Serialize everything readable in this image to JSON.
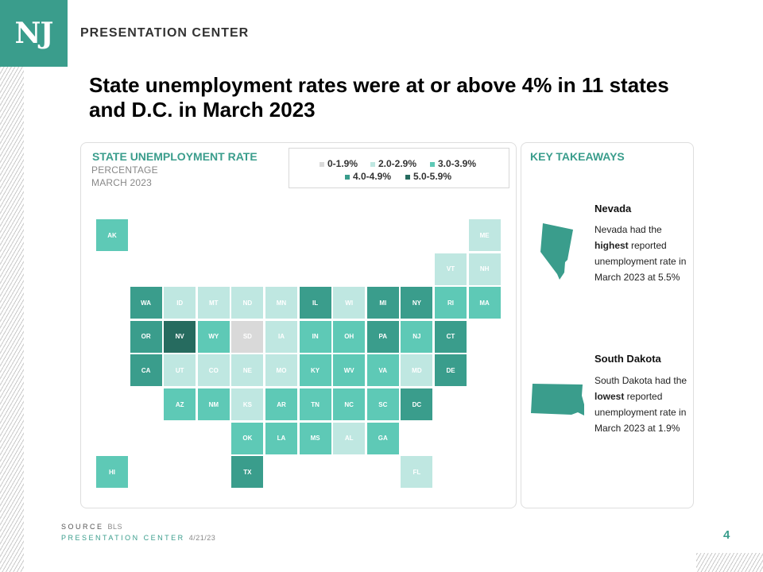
{
  "header": {
    "logo_text": "NJ",
    "brand": "PRESENTATION CENTER",
    "title": "State unemployment rates were at or above 4% in 11 states and D.C. in March 2023"
  },
  "map_panel": {
    "title": "STATE UNEMPLOYMENT RATE",
    "subtitle_1": "PERCENTAGE",
    "subtitle_2": "MARCH 2023"
  },
  "legend": [
    {
      "label": "0-1.9%",
      "color": "#d9d9d9"
    },
    {
      "label": "2.0-2.9%",
      "color": "#bfe7e1"
    },
    {
      "label": "3.0-3.9%",
      "color": "#5ec9b6"
    },
    {
      "label": "4.0-4.9%",
      "color": "#3a9d8c"
    },
    {
      "label": "5.0-5.9%",
      "color": "#266b5f"
    }
  ],
  "chart_data": {
    "type": "heatmap",
    "title": "STATE UNEMPLOYMENT RATE",
    "subtitle": "PERCENTAGE / MARCH 2023",
    "bins": [
      "0-1.9%",
      "2.0-2.9%",
      "3.0-3.9%",
      "4.0-4.9%",
      "5.0-5.9%"
    ],
    "states": [
      {
        "abbr": "AK",
        "bin": 2,
        "row": 0,
        "col": 0
      },
      {
        "abbr": "ME",
        "bin": 1,
        "row": 0,
        "col": 11
      },
      {
        "abbr": "VT",
        "bin": 1,
        "row": 1,
        "col": 10
      },
      {
        "abbr": "NH",
        "bin": 1,
        "row": 1,
        "col": 11
      },
      {
        "abbr": "WA",
        "bin": 3,
        "row": 2,
        "col": 1
      },
      {
        "abbr": "ID",
        "bin": 1,
        "row": 2,
        "col": 2
      },
      {
        "abbr": "MT",
        "bin": 1,
        "row": 2,
        "col": 3
      },
      {
        "abbr": "ND",
        "bin": 1,
        "row": 2,
        "col": 4
      },
      {
        "abbr": "MN",
        "bin": 1,
        "row": 2,
        "col": 5
      },
      {
        "abbr": "IL",
        "bin": 3,
        "row": 2,
        "col": 6
      },
      {
        "abbr": "WI",
        "bin": 1,
        "row": 2,
        "col": 7
      },
      {
        "abbr": "MI",
        "bin": 3,
        "row": 2,
        "col": 8
      },
      {
        "abbr": "NY",
        "bin": 3,
        "row": 2,
        "col": 9
      },
      {
        "abbr": "RI",
        "bin": 2,
        "row": 2,
        "col": 10
      },
      {
        "abbr": "MA",
        "bin": 2,
        "row": 2,
        "col": 11
      },
      {
        "abbr": "OR",
        "bin": 3,
        "row": 3,
        "col": 1
      },
      {
        "abbr": "NV",
        "bin": 4,
        "row": 3,
        "col": 2
      },
      {
        "abbr": "WY",
        "bin": 2,
        "row": 3,
        "col": 3
      },
      {
        "abbr": "SD",
        "bin": 0,
        "row": 3,
        "col": 4
      },
      {
        "abbr": "IA",
        "bin": 1,
        "row": 3,
        "col": 5
      },
      {
        "abbr": "IN",
        "bin": 2,
        "row": 3,
        "col": 6
      },
      {
        "abbr": "OH",
        "bin": 2,
        "row": 3,
        "col": 7
      },
      {
        "abbr": "PA",
        "bin": 3,
        "row": 3,
        "col": 8
      },
      {
        "abbr": "NJ",
        "bin": 2,
        "row": 3,
        "col": 9
      },
      {
        "abbr": "CT",
        "bin": 3,
        "row": 3,
        "col": 10
      },
      {
        "abbr": "CA",
        "bin": 3,
        "row": 4,
        "col": 1
      },
      {
        "abbr": "UT",
        "bin": 1,
        "row": 4,
        "col": 2
      },
      {
        "abbr": "CO",
        "bin": 1,
        "row": 4,
        "col": 3
      },
      {
        "abbr": "NE",
        "bin": 1,
        "row": 4,
        "col": 4
      },
      {
        "abbr": "MO",
        "bin": 1,
        "row": 4,
        "col": 5
      },
      {
        "abbr": "KY",
        "bin": 2,
        "row": 4,
        "col": 6
      },
      {
        "abbr": "WV",
        "bin": 2,
        "row": 4,
        "col": 7
      },
      {
        "abbr": "VA",
        "bin": 2,
        "row": 4,
        "col": 8
      },
      {
        "abbr": "MD",
        "bin": 1,
        "row": 4,
        "col": 9
      },
      {
        "abbr": "DE",
        "bin": 3,
        "row": 4,
        "col": 10
      },
      {
        "abbr": "AZ",
        "bin": 2,
        "row": 5,
        "col": 2
      },
      {
        "abbr": "NM",
        "bin": 2,
        "row": 5,
        "col": 3
      },
      {
        "abbr": "KS",
        "bin": 1,
        "row": 5,
        "col": 4
      },
      {
        "abbr": "AR",
        "bin": 2,
        "row": 5,
        "col": 5
      },
      {
        "abbr": "TN",
        "bin": 2,
        "row": 5,
        "col": 6
      },
      {
        "abbr": "NC",
        "bin": 2,
        "row": 5,
        "col": 7
      },
      {
        "abbr": "SC",
        "bin": 2,
        "row": 5,
        "col": 8
      },
      {
        "abbr": "DC",
        "bin": 3,
        "row": 5,
        "col": 9
      },
      {
        "abbr": "OK",
        "bin": 2,
        "row": 6,
        "col": 4
      },
      {
        "abbr": "LA",
        "bin": 2,
        "row": 6,
        "col": 5
      },
      {
        "abbr": "MS",
        "bin": 2,
        "row": 6,
        "col": 6
      },
      {
        "abbr": "AL",
        "bin": 1,
        "row": 6,
        "col": 7
      },
      {
        "abbr": "GA",
        "bin": 2,
        "row": 6,
        "col": 8
      },
      {
        "abbr": "HI",
        "bin": 2,
        "row": 7,
        "col": 0
      },
      {
        "abbr": "TX",
        "bin": 3,
        "row": 7,
        "col": 4
      },
      {
        "abbr": "FL",
        "bin": 1,
        "row": 7,
        "col": 9
      }
    ]
  },
  "key_takeaways": {
    "title": "KEY TAKEAWAYS",
    "items": [
      {
        "name": "Nevada",
        "pre": "Nevada had the ",
        "bold": "highest",
        "post": " reported unemployment rate in March 2023 at 5.5%"
      },
      {
        "name": "South Dakota",
        "pre": "South Dakota had the ",
        "bold": "lowest",
        "post": " reported unemployment rate in March 2023 at 1.9%"
      }
    ]
  },
  "footer": {
    "source_label": "SOURCE",
    "source_value": "BLS",
    "center_label": "PRESENTATION CENTER",
    "date": "4/21/23",
    "page_number": "4"
  },
  "colors": {
    "accent": "#3a9d8c",
    "light_label": "#ffffff"
  }
}
